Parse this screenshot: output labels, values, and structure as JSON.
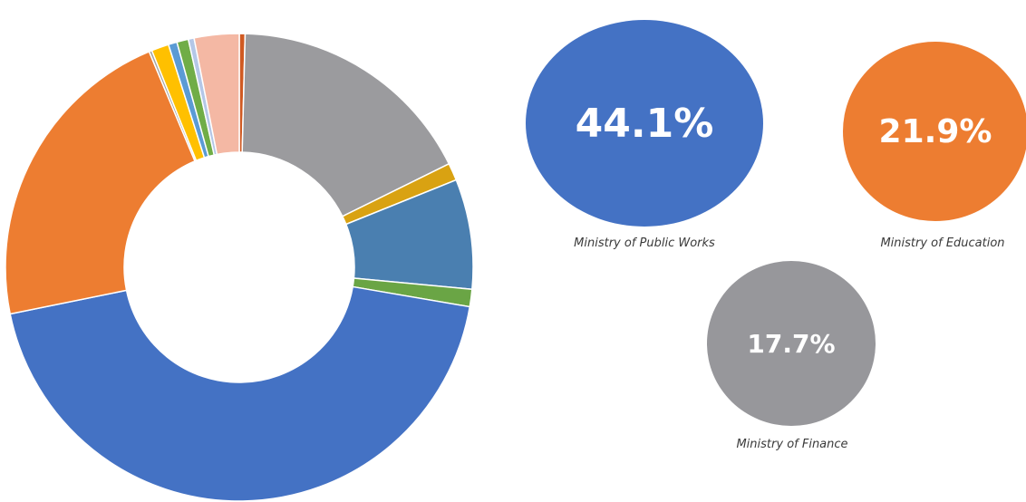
{
  "chart_data": [
    {
      "type": "pie",
      "variant": "donut",
      "start_angle_deg": 0,
      "direction": "clockwise",
      "slices": [
        {
          "value": 0.4,
          "color": "#D05A22"
        },
        {
          "value": 17.3,
          "color": "#9B9B9E"
        },
        {
          "value": 1.2,
          "color": "#D9A212"
        },
        {
          "value": 7.6,
          "color": "#4A7FB0"
        },
        {
          "value": 1.2,
          "color": "#6AA545"
        },
        {
          "value": 44.1,
          "color": "#4472C4"
        },
        {
          "value": 21.9,
          "color": "#ED7D31"
        },
        {
          "value": 0.2,
          "color": "#A5A5A5"
        },
        {
          "value": 1.2,
          "color": "#FFC000"
        },
        {
          "value": 0.6,
          "color": "#5B9BD5"
        },
        {
          "value": 0.8,
          "color": "#70AD47"
        },
        {
          "value": 0.4,
          "color": "#B4C7E7"
        },
        {
          "value": 3.1,
          "color": "#F4B8A4"
        }
      ]
    },
    {
      "type": "bubble",
      "items": [
        {
          "value": "44.1%",
          "label": "Ministry of Public Works",
          "color": "#4472C4"
        },
        {
          "value": "21.9%",
          "label": "Ministry of Education",
          "color": "#ED7D31"
        },
        {
          "value": "17.7%",
          "label": "Ministry of Finance",
          "color": "#97979B"
        }
      ]
    }
  ]
}
